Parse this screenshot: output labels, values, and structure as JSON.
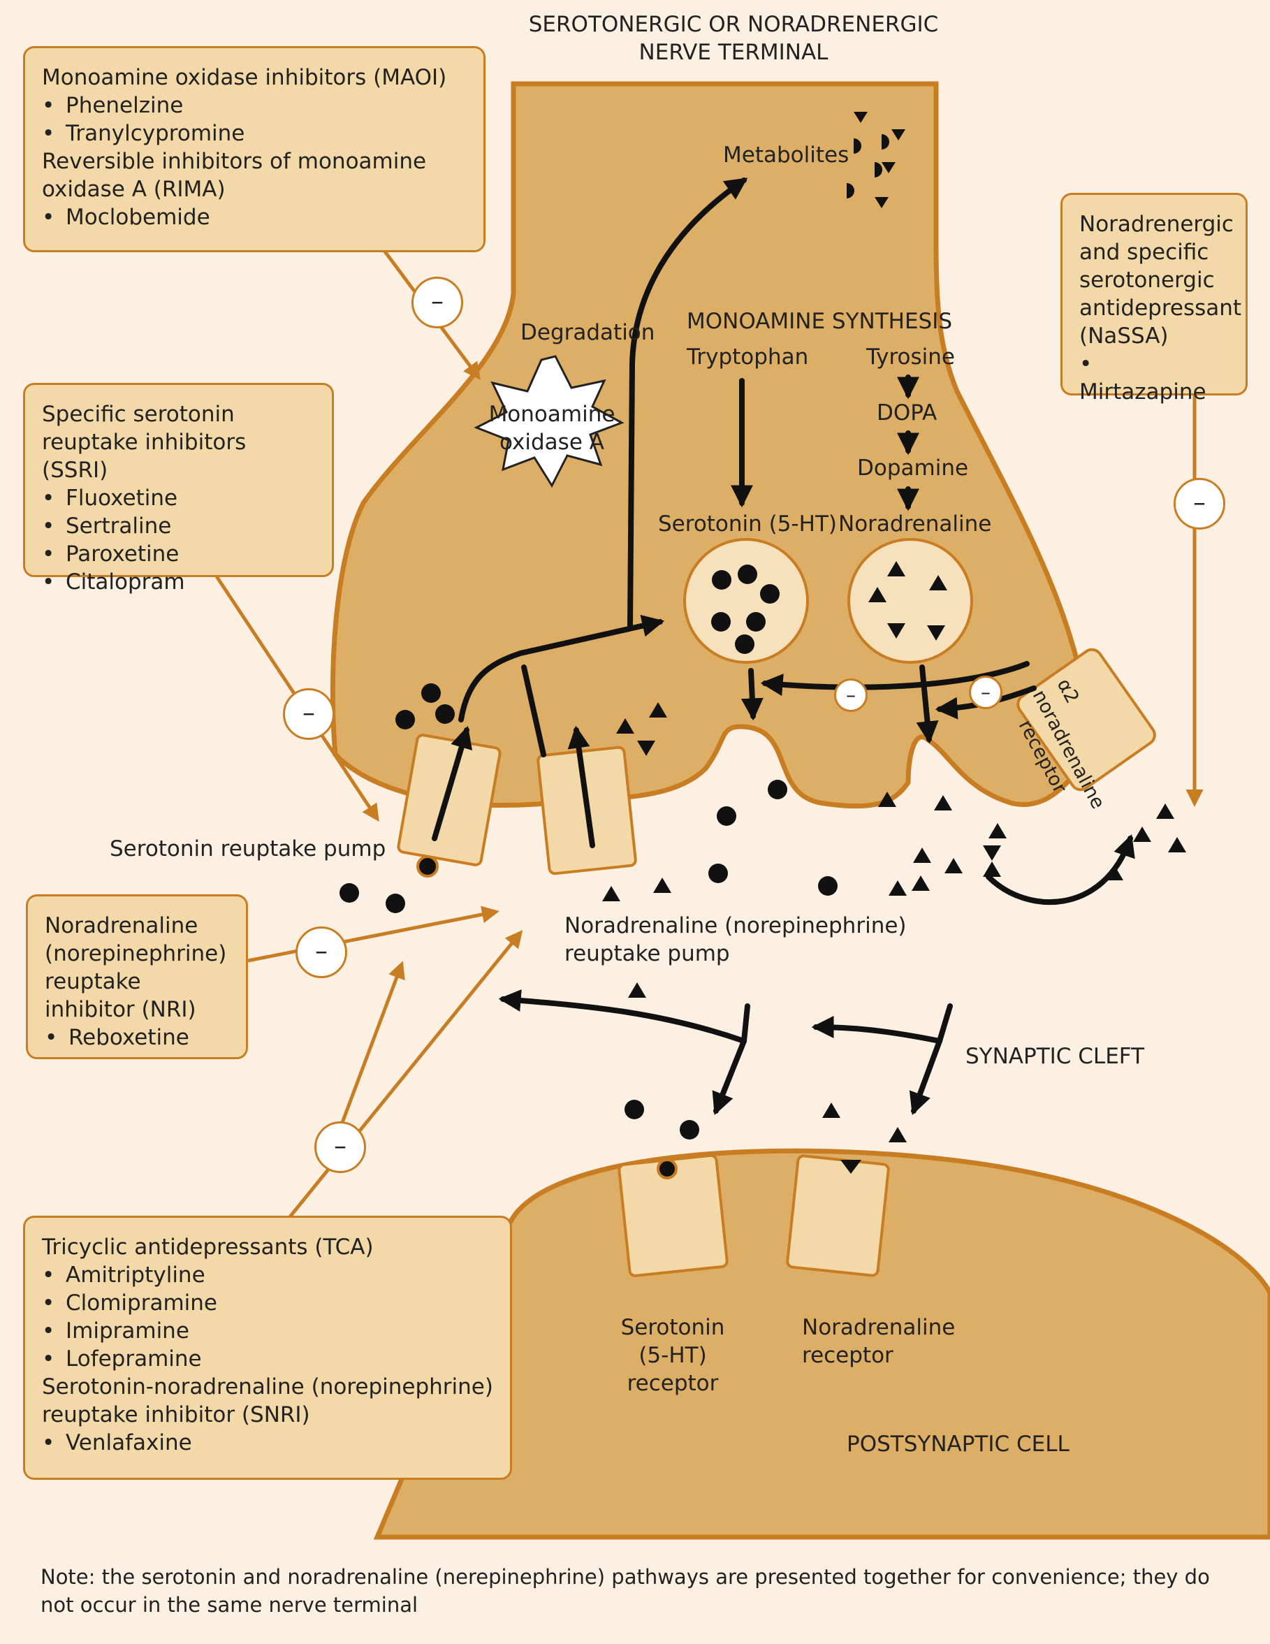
{
  "labels": {
    "terminal_title": [
      "SEROTONERGIC OR NORADRENERGIC",
      "NERVE TERMINAL"
    ],
    "metabolites": "Metabolites",
    "degradation": "Degradation",
    "mao_enzyme": [
      "Monoamine",
      "oxidase A"
    ],
    "synthesis_title": "MONOAMINE SYNTHESIS",
    "tryptophan": "Tryptophan",
    "tyrosine": "Tyrosine",
    "dopa": "DOPA",
    "dopamine": "Dopamine",
    "serotonin": "Serotonin (5-HT)",
    "noradrenaline": "Noradrenaline",
    "alpha2_receptor": [
      "α2",
      "noradrenaline",
      "receptor"
    ],
    "serotonin_pump": "Serotonin reuptake pump",
    "na_pump": [
      "Noradrenaline (norepinephrine)",
      "reuptake pump"
    ],
    "synaptic_cleft": "SYNAPTIC CLEFT",
    "ht_receptor": [
      "Serotonin",
      "(5-HT)",
      "receptor"
    ],
    "na_receptor": [
      "Noradrenaline",
      "receptor"
    ],
    "postsynaptic": "POSTSYNAPTIC CELL",
    "minus": "–"
  },
  "drug_boxes": {
    "maoi": {
      "groups": [
        {
          "title": "Monoamine oxidase inhibitors (MAOI)",
          "drugs": [
            "Phenelzine",
            "Tranylcypromine"
          ]
        },
        {
          "title": "Reversible inhibitors of monoamine oxidase A (RIMA)",
          "drugs": [
            "Moclobemide"
          ]
        }
      ]
    },
    "ssri": {
      "groups": [
        {
          "title": "Specific serotonin reuptake inhibitors (SSRI)",
          "drugs": [
            "Fluoxetine",
            "Sertraline",
            "Paroxetine",
            "Citalopram"
          ]
        }
      ]
    },
    "nassa": {
      "groups": [
        {
          "title": "Noradrenergic and specific serotonergic antidepressant (NaSSA)",
          "drugs": [
            "Mirtazapine"
          ]
        }
      ]
    },
    "nri": {
      "groups": [
        {
          "title": "Noradrenaline (norepinephrine) reuptake inhibitor (NRI)",
          "drugs": [
            "Reboxetine"
          ]
        }
      ]
    },
    "tca": {
      "groups": [
        {
          "title": "Tricyclic antidepressants (TCA)",
          "drugs": [
            "Amitriptyline",
            "Clomipramine",
            "Imipramine",
            "Lofepramine"
          ]
        },
        {
          "title": "Serotonin-noradrenaline (norepinephrine) reuptake inhibitor (SNRI)",
          "drugs": [
            "Venlafaxine"
          ]
        }
      ]
    }
  },
  "note": "Note: the serotonin and noradrenaline (nerepinephrine) pathways are presented together for convenience; they do not occur in the same nerve terminal",
  "colors": {
    "background": "#fbf0e2",
    "cell_fill": "#ddaf66",
    "cell_border": "#c97d22",
    "box_fill": "#f3d9a8",
    "vesicle_fill": "#f7e1bd",
    "inhibitor_line": "#c97d22",
    "pathway": "#111111"
  }
}
